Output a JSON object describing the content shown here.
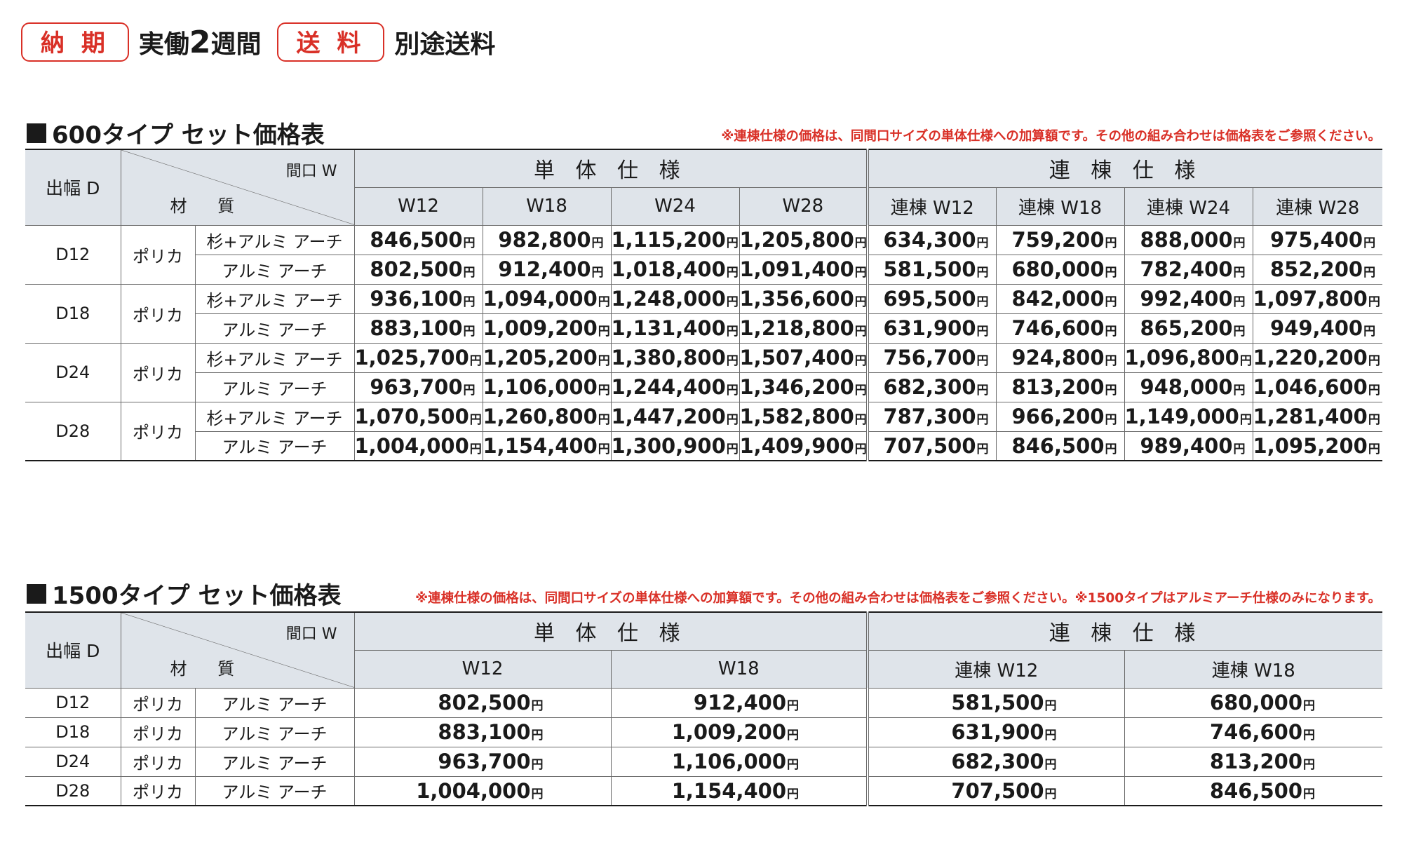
{
  "header": {
    "delivery_badge": "納 期",
    "delivery_pre": "実働",
    "delivery_num": "2",
    "delivery_post": "週間",
    "shipping_badge": "送 料",
    "shipping_text": "別途送料"
  },
  "labels": {
    "width_axis": "間口 W",
    "material_axis": "材 質",
    "depth_axis": "出幅 D",
    "single_spec": "単 体 仕 様",
    "linked_spec": "連 棟 仕 様",
    "yen": "円"
  },
  "table600": {
    "title": "600タイプ セット価格表",
    "note": "※連棟仕様の価格は、同間口サイズの単体仕様への加算額です。その他の組み合わせは価格表をご参照ください。",
    "single_cols": [
      "W12",
      "W18",
      "W24",
      "W28"
    ],
    "linked_cols": [
      "連棟 W12",
      "連棟 W18",
      "連棟 W24",
      "連棟 W28"
    ],
    "groups": [
      {
        "depth": "D12",
        "category": "ポリカ",
        "rows": [
          {
            "material": "杉+アルミ アーチ",
            "single": [
              "846,500",
              "982,800",
              "1,115,200",
              "1,205,800"
            ],
            "linked": [
              "634,300",
              "759,200",
              "888,000",
              "975,400"
            ]
          },
          {
            "material": "アルミ アーチ",
            "single": [
              "802,500",
              "912,400",
              "1,018,400",
              "1,091,400"
            ],
            "linked": [
              "581,500",
              "680,000",
              "782,400",
              "852,200"
            ]
          }
        ]
      },
      {
        "depth": "D18",
        "category": "ポリカ",
        "rows": [
          {
            "material": "杉+アルミ アーチ",
            "single": [
              "936,100",
              "1,094,000",
              "1,248,000",
              "1,356,600"
            ],
            "linked": [
              "695,500",
              "842,000",
              "992,400",
              "1,097,800"
            ]
          },
          {
            "material": "アルミ アーチ",
            "single": [
              "883,100",
              "1,009,200",
              "1,131,400",
              "1,218,800"
            ],
            "linked": [
              "631,900",
              "746,600",
              "865,200",
              "949,400"
            ]
          }
        ]
      },
      {
        "depth": "D24",
        "category": "ポリカ",
        "rows": [
          {
            "material": "杉+アルミ アーチ",
            "single": [
              "1,025,700",
              "1,205,200",
              "1,380,800",
              "1,507,400"
            ],
            "linked": [
              "756,700",
              "924,800",
              "1,096,800",
              "1,220,200"
            ]
          },
          {
            "material": "アルミ アーチ",
            "single": [
              "963,700",
              "1,106,000",
              "1,244,400",
              "1,346,200"
            ],
            "linked": [
              "682,300",
              "813,200",
              "948,000",
              "1,046,600"
            ]
          }
        ]
      },
      {
        "depth": "D28",
        "category": "ポリカ",
        "rows": [
          {
            "material": "杉+アルミ アーチ",
            "single": [
              "1,070,500",
              "1,260,800",
              "1,447,200",
              "1,582,800"
            ],
            "linked": [
              "787,300",
              "966,200",
              "1,149,000",
              "1,281,400"
            ]
          },
          {
            "material": "アルミ アーチ",
            "single": [
              "1,004,000",
              "1,154,400",
              "1,300,900",
              "1,409,900"
            ],
            "linked": [
              "707,500",
              "846,500",
              "989,400",
              "1,095,200"
            ]
          }
        ]
      }
    ]
  },
  "table1500": {
    "title": "1500タイプ セット価格表",
    "note": "※連棟仕様の価格は、同間口サイズの単体仕様への加算額です。その他の組み合わせは価格表をご参照ください。※1500タイプはアルミアーチ仕様のみになります。",
    "single_cols": [
      "W12",
      "W18"
    ],
    "linked_cols": [
      "連棟 W12",
      "連棟 W18"
    ],
    "rows": [
      {
        "depth": "D12",
        "category": "ポリカ",
        "material": "アルミ アーチ",
        "single": [
          "802,500",
          "912,400"
        ],
        "linked": [
          "581,500",
          "680,000"
        ]
      },
      {
        "depth": "D18",
        "category": "ポリカ",
        "material": "アルミ アーチ",
        "single": [
          "883,100",
          "1,009,200"
        ],
        "linked": [
          "631,900",
          "746,600"
        ]
      },
      {
        "depth": "D24",
        "category": "ポリカ",
        "material": "アルミ アーチ",
        "single": [
          "963,700",
          "1,106,000"
        ],
        "linked": [
          "682,300",
          "813,200"
        ]
      },
      {
        "depth": "D28",
        "category": "ポリカ",
        "material": "アルミ アーチ",
        "single": [
          "1,004,000",
          "1,154,400"
        ],
        "linked": [
          "707,500",
          "846,500"
        ]
      }
    ]
  }
}
